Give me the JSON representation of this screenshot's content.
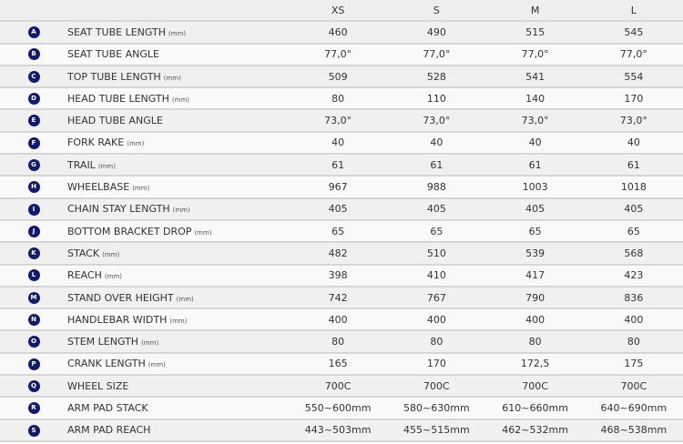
{
  "sizes": [
    "XS",
    "S",
    "M",
    "L"
  ],
  "badge_color": "#101a6e",
  "rows": [
    {
      "letter": "A",
      "label": "SEAT TUBE LENGTH",
      "unit": "(mm)",
      "values": [
        "460",
        "490",
        "515",
        "545"
      ]
    },
    {
      "letter": "B",
      "label": "SEAT TUBE ANGLE",
      "unit": "",
      "values": [
        "77,0°",
        "77,0°",
        "77,0°",
        "77,0°"
      ]
    },
    {
      "letter": "C",
      "label": "TOP TUBE LENGTH",
      "unit": "(mm)",
      "values": [
        "509",
        "528",
        "541",
        "554"
      ]
    },
    {
      "letter": "D",
      "label": "HEAD TUBE LENGTH",
      "unit": "(mm)",
      "values": [
        "80",
        "110",
        "140",
        "170"
      ]
    },
    {
      "letter": "E",
      "label": "HEAD TUBE ANGLE",
      "unit": "",
      "values": [
        "73,0°",
        "73,0°",
        "73,0°",
        "73,0°"
      ]
    },
    {
      "letter": "F",
      "label": "FORK RAKE",
      "unit": "(mm)",
      "values": [
        "40",
        "40",
        "40",
        "40"
      ]
    },
    {
      "letter": "G",
      "label": "TRAIL",
      "unit": "(mm)",
      "values": [
        "61",
        "61",
        "61",
        "61"
      ]
    },
    {
      "letter": "H",
      "label": "WHEELBASE",
      "unit": "(mm)",
      "values": [
        "967",
        "988",
        "1003",
        "1018"
      ]
    },
    {
      "letter": "I",
      "label": "CHAIN STAY LENGTH",
      "unit": "(mm)",
      "values": [
        "405",
        "405",
        "405",
        "405"
      ]
    },
    {
      "letter": "J",
      "label": "BOTTOM BRACKET DROP",
      "unit": "(mm)",
      "values": [
        "65",
        "65",
        "65",
        "65"
      ]
    },
    {
      "letter": "K",
      "label": "STACK",
      "unit": "(mm)",
      "values": [
        "482",
        "510",
        "539",
        "568"
      ]
    },
    {
      "letter": "L",
      "label": "REACH",
      "unit": "(mm)",
      "values": [
        "398",
        "410",
        "417",
        "423"
      ]
    },
    {
      "letter": "M",
      "label": "STAND OVER HEIGHT",
      "unit": "(mm)",
      "values": [
        "742",
        "767",
        "790",
        "836"
      ]
    },
    {
      "letter": "N",
      "label": "HANDLEBAR WIDTH",
      "unit": "(mm)",
      "values": [
        "400",
        "400",
        "400",
        "400"
      ]
    },
    {
      "letter": "O",
      "label": "STEM LENGTH",
      "unit": "(mm)",
      "values": [
        "80",
        "80",
        "80",
        "80"
      ]
    },
    {
      "letter": "P",
      "label": "CRANK LENGTH",
      "unit": "(mm)",
      "values": [
        "165",
        "170",
        "172,5",
        "175"
      ]
    },
    {
      "letter": "Q",
      "label": "WHEEL SIZE",
      "unit": "",
      "values": [
        "700C",
        "700C",
        "700C",
        "700C"
      ]
    },
    {
      "letter": "R",
      "label": "ARM PAD STACK",
      "unit": "",
      "values": [
        "550~600mm",
        "580~630mm",
        "610~660mm",
        "640~690mm"
      ]
    },
    {
      "letter": "S",
      "label": "ARM PAD REACH",
      "unit": "",
      "values": [
        "443~503mm",
        "455~515mm",
        "462~532mm",
        "468~538mm"
      ]
    }
  ]
}
